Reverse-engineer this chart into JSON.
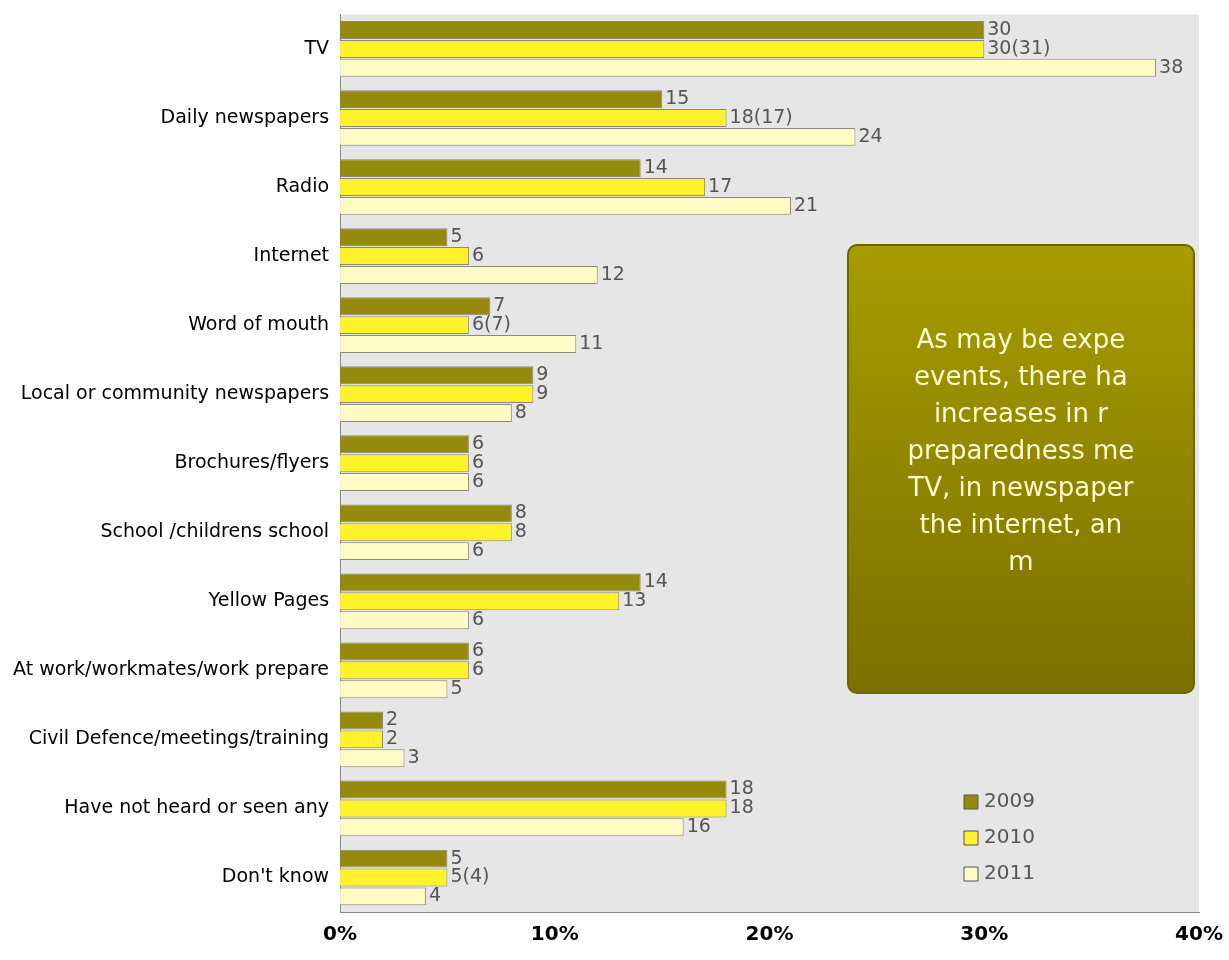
{
  "chart_data": {
    "type": "bar",
    "orientation": "horizontal",
    "categories": [
      "TV",
      "Daily newspapers",
      "Radio",
      "Internet",
      "Word of mouth",
      "Local or community newspapers",
      "Brochures/flyers",
      "School /childrens school",
      "Yellow Pages",
      "At work/workmates/work prepare",
      "Civil Defence/meetings/training",
      "Have not heard or seen any",
      "Don't know"
    ],
    "series": [
      {
        "name": "2009",
        "color": "#948b0c",
        "values": [
          30,
          15,
          14,
          5,
          7,
          9,
          6,
          8,
          14,
          6,
          2,
          18,
          5
        ],
        "value_labels": [
          "30",
          "15",
          "14",
          "5",
          "7",
          "9",
          "6",
          "8",
          "14",
          "6",
          "2",
          "18",
          "5"
        ]
      },
      {
        "name": "2010",
        "color": "#fff22a",
        "values": [
          30,
          18,
          17,
          6,
          6,
          9,
          6,
          8,
          13,
          6,
          2,
          18,
          5
        ],
        "value_labels": [
          "30(31)",
          "18(17)",
          "17",
          "6",
          "6(7)",
          "9",
          "6",
          "8",
          "13",
          "6",
          "2",
          "18",
          "5(4)"
        ]
      },
      {
        "name": "2011",
        "color": "#fffbc4",
        "values": [
          38,
          24,
          21,
          12,
          11,
          8,
          6,
          6,
          6,
          5,
          3,
          16,
          4
        ],
        "value_labels": [
          "38",
          "24",
          "21",
          "12",
          "11",
          "8",
          "6",
          "6",
          "6",
          "5",
          "3",
          "16",
          "4"
        ]
      }
    ],
    "xlim": [
      0,
      40
    ],
    "xticks": [
      {
        "value": 0,
        "label": "0%"
      },
      {
        "value": 10,
        "label": "10%"
      },
      {
        "value": 20,
        "label": "20%"
      },
      {
        "value": 30,
        "label": "30%"
      },
      {
        "value": 40,
        "label": "40%"
      }
    ],
    "grid": false,
    "legend": "bottom right",
    "annotations": [
      "As may be expe\nevents, there ha\nincreases in r\npreparedness me\nTV, in newspaper\nthe internet, an\nm"
    ]
  }
}
